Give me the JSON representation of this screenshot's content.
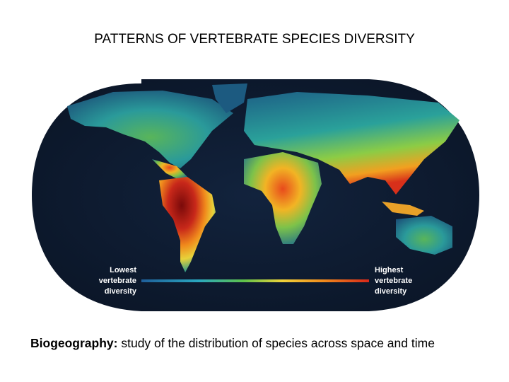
{
  "title": "PATTERNS OF VERTEBRATE SPECIES DIVERSITY",
  "map": {
    "legend": {
      "low_label": [
        "Lowest",
        "vertebrate",
        "diversity"
      ],
      "high_label": [
        "Highest",
        "vertebrate",
        "diversity"
      ]
    }
  },
  "caption": {
    "term": "Biogeography:",
    "definition": "study of the distribution of species across space and time"
  }
}
